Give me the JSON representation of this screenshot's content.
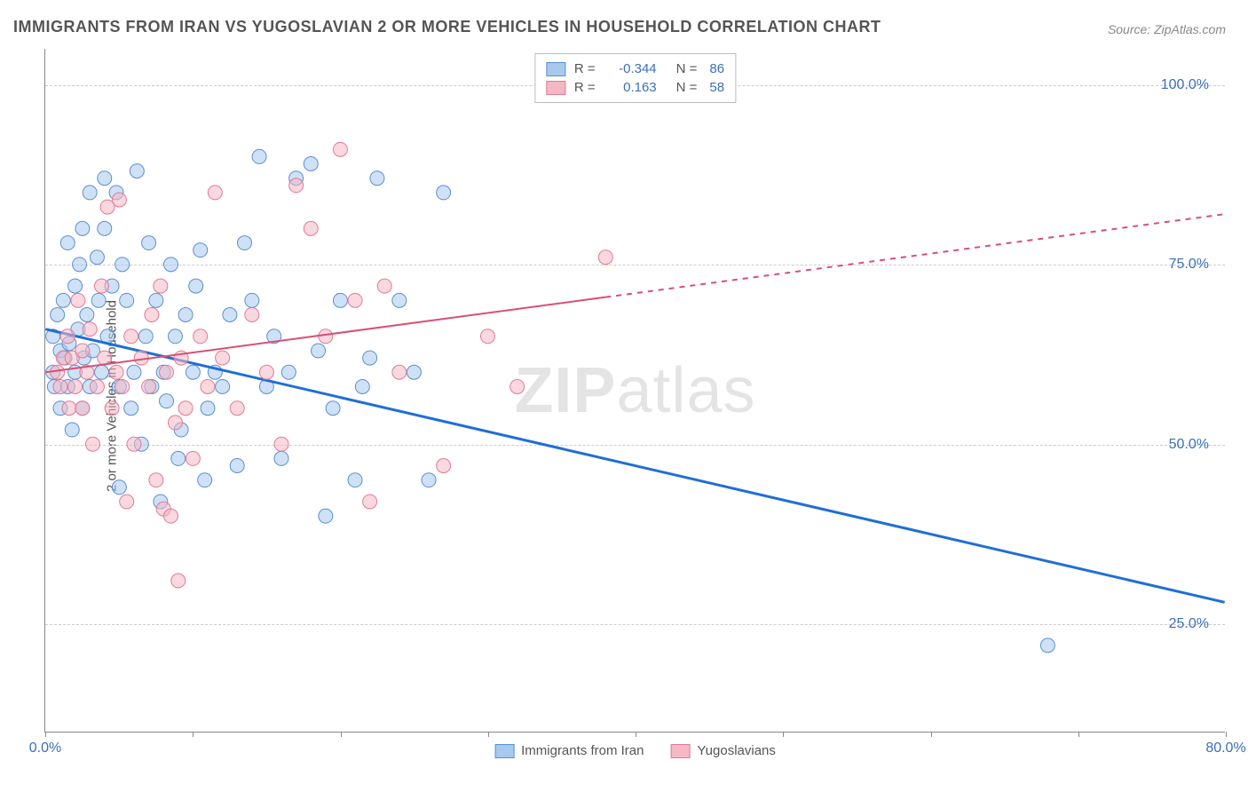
{
  "title": "IMMIGRANTS FROM IRAN VS YUGOSLAVIAN 2 OR MORE VEHICLES IN HOUSEHOLD CORRELATION CHART",
  "source": "Source: ZipAtlas.com",
  "watermark": "ZIPatlas",
  "chart": {
    "type": "scatter",
    "ylabel": "2 or more Vehicles in Household",
    "xlim": [
      0,
      80
    ],
    "ylim": [
      10,
      105
    ],
    "xticks": [
      0,
      10,
      20,
      30,
      40,
      50,
      60,
      70,
      80
    ],
    "xtick_labels": {
      "0": "0.0%",
      "80": "80.0%"
    },
    "yticks": [
      25,
      50,
      75,
      100
    ],
    "ytick_labels": {
      "25": "25.0%",
      "50": "50.0%",
      "75": "75.0%",
      "100": "100.0%"
    },
    "grid_color": "#cccccc",
    "background_color": "#ffffff",
    "axis_color": "#888888",
    "label_fontsize": 15,
    "tick_label_color": "#3b6fb6",
    "marker_radius": 8,
    "marker_opacity": 0.55,
    "series": [
      {
        "name": "Immigrants from Iran",
        "color_fill": "#a8c8ec",
        "color_stroke": "#5a8fd4",
        "R": "-0.344",
        "N": "86",
        "trend": {
          "x1": 0,
          "y1": 66,
          "x2": 80,
          "y2": 28,
          "extrapolate_from_x": null,
          "color": "#1f6fd4",
          "width": 3
        },
        "points": [
          [
            0.5,
            65
          ],
          [
            0.5,
            60
          ],
          [
            0.6,
            58
          ],
          [
            0.8,
            68
          ],
          [
            1.0,
            63
          ],
          [
            1.0,
            55
          ],
          [
            1.2,
            70
          ],
          [
            1.3,
            62
          ],
          [
            1.5,
            78
          ],
          [
            1.5,
            58
          ],
          [
            1.6,
            64
          ],
          [
            1.8,
            52
          ],
          [
            2.0,
            72
          ],
          [
            2.0,
            60
          ],
          [
            2.2,
            66
          ],
          [
            2.3,
            75
          ],
          [
            2.5,
            80
          ],
          [
            2.5,
            55
          ],
          [
            2.6,
            62
          ],
          [
            2.8,
            68
          ],
          [
            3.0,
            85
          ],
          [
            3.0,
            58
          ],
          [
            3.2,
            63
          ],
          [
            3.5,
            76
          ],
          [
            3.6,
            70
          ],
          [
            3.8,
            60
          ],
          [
            4.0,
            87
          ],
          [
            4.0,
            80
          ],
          [
            4.2,
            65
          ],
          [
            4.5,
            72
          ],
          [
            4.8,
            85
          ],
          [
            5.0,
            44
          ],
          [
            5.0,
            58
          ],
          [
            5.2,
            75
          ],
          [
            5.5,
            70
          ],
          [
            5.8,
            55
          ],
          [
            6.0,
            60
          ],
          [
            6.2,
            88
          ],
          [
            6.5,
            50
          ],
          [
            6.8,
            65
          ],
          [
            7.0,
            78
          ],
          [
            7.2,
            58
          ],
          [
            7.5,
            70
          ],
          [
            7.8,
            42
          ],
          [
            8.0,
            60
          ],
          [
            8.2,
            56
          ],
          [
            8.5,
            75
          ],
          [
            8.8,
            65
          ],
          [
            9.0,
            48
          ],
          [
            9.2,
            52
          ],
          [
            9.5,
            68
          ],
          [
            10.0,
            60
          ],
          [
            10.2,
            72
          ],
          [
            10.5,
            77
          ],
          [
            10.8,
            45
          ],
          [
            11.0,
            55
          ],
          [
            11.5,
            60
          ],
          [
            12.0,
            58
          ],
          [
            12.5,
            68
          ],
          [
            13.0,
            47
          ],
          [
            13.5,
            78
          ],
          [
            14.0,
            70
          ],
          [
            14.5,
            90
          ],
          [
            15.0,
            58
          ],
          [
            15.5,
            65
          ],
          [
            16.0,
            48
          ],
          [
            16.5,
            60
          ],
          [
            17.0,
            87
          ],
          [
            18.0,
            89
          ],
          [
            18.5,
            63
          ],
          [
            19.0,
            40
          ],
          [
            19.5,
            55
          ],
          [
            20.0,
            70
          ],
          [
            21.0,
            45
          ],
          [
            21.5,
            58
          ],
          [
            22.0,
            62
          ],
          [
            22.5,
            87
          ],
          [
            24.0,
            70
          ],
          [
            25.0,
            60
          ],
          [
            26.0,
            45
          ],
          [
            27.0,
            85
          ],
          [
            68.0,
            22
          ]
        ]
      },
      {
        "name": "Yugoslavians",
        "color_fill": "#f4b8c4",
        "color_stroke": "#e27a94",
        "R": "0.163",
        "N": "58",
        "trend": {
          "x1": 0,
          "y1": 60,
          "x2": 80,
          "y2": 82,
          "extrapolate_from_x": 38,
          "color": "#d94f75",
          "width": 2
        },
        "points": [
          [
            0.8,
            60
          ],
          [
            1.0,
            58
          ],
          [
            1.2,
            62
          ],
          [
            1.5,
            65
          ],
          [
            1.6,
            55
          ],
          [
            1.8,
            62
          ],
          [
            2.0,
            58
          ],
          [
            2.2,
            70
          ],
          [
            2.5,
            63
          ],
          [
            2.5,
            55
          ],
          [
            2.8,
            60
          ],
          [
            3.0,
            66
          ],
          [
            3.2,
            50
          ],
          [
            3.5,
            58
          ],
          [
            3.8,
            72
          ],
          [
            4.0,
            62
          ],
          [
            4.2,
            83
          ],
          [
            4.5,
            55
          ],
          [
            4.8,
            60
          ],
          [
            5.0,
            84
          ],
          [
            5.2,
            58
          ],
          [
            5.5,
            42
          ],
          [
            5.8,
            65
          ],
          [
            6.0,
            50
          ],
          [
            6.5,
            62
          ],
          [
            7.0,
            58
          ],
          [
            7.2,
            68
          ],
          [
            7.5,
            45
          ],
          [
            7.8,
            72
          ],
          [
            8.0,
            41
          ],
          [
            8.2,
            60
          ],
          [
            8.5,
            40
          ],
          [
            8.8,
            53
          ],
          [
            9.0,
            31
          ],
          [
            9.2,
            62
          ],
          [
            9.5,
            55
          ],
          [
            10.0,
            48
          ],
          [
            10.5,
            65
          ],
          [
            11.0,
            58
          ],
          [
            11.5,
            85
          ],
          [
            12.0,
            62
          ],
          [
            13.0,
            55
          ],
          [
            14.0,
            68
          ],
          [
            15.0,
            60
          ],
          [
            16.0,
            50
          ],
          [
            17.0,
            86
          ],
          [
            18.0,
            80
          ],
          [
            19.0,
            65
          ],
          [
            20.0,
            91
          ],
          [
            21.0,
            70
          ],
          [
            22.0,
            42
          ],
          [
            23.0,
            72
          ],
          [
            24.0,
            60
          ],
          [
            27.0,
            47
          ],
          [
            30.0,
            65
          ],
          [
            32.0,
            58
          ],
          [
            38.0,
            76
          ]
        ]
      }
    ]
  },
  "legend_bottom": [
    {
      "label": "Immigrants from Iran",
      "fill": "#a8c8ec",
      "stroke": "#5a8fd4"
    },
    {
      "label": "Yugoslavians",
      "fill": "#f4b8c4",
      "stroke": "#e27a94"
    }
  ]
}
